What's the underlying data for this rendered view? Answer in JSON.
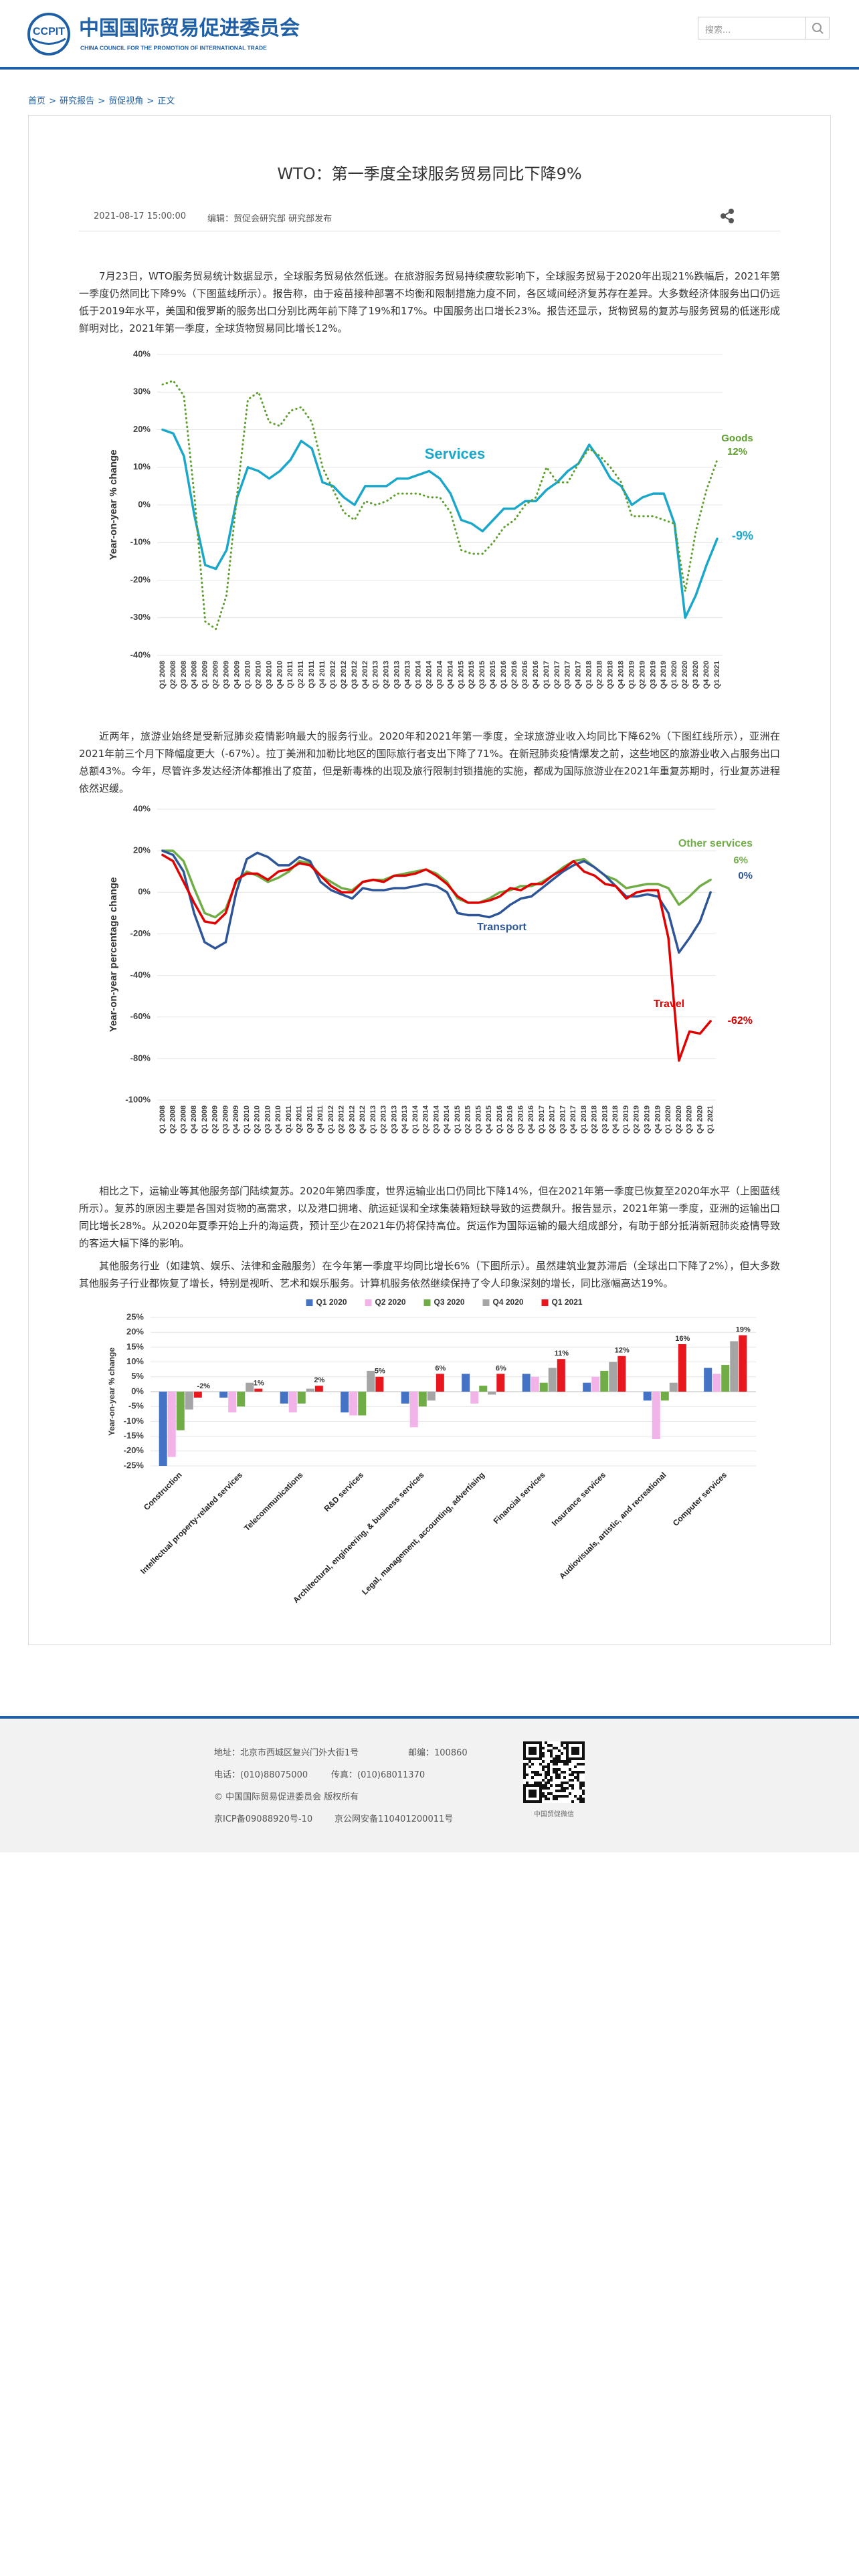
{
  "header": {
    "logo_mark": "CCPIT",
    "org_name": "中国国际贸易促进委员会",
    "org_name_en": "CHINA COUNCIL FOR THE PROMOTION OF INTERNATIONAL TRADE",
    "search_placeholder": "搜索..."
  },
  "breadcrumb": [
    "首页",
    "研究报告",
    "贸促视角",
    "正文"
  ],
  "breadcrumb_separator": ">",
  "article": {
    "title": "WTO：第一季度全球服务贸易同比下降9%",
    "date": "2021-08-17 15:00:00",
    "editor": "编辑：贸促会研究部 研究部发布",
    "paragraphs": [
      "7月23日，WTO服务贸易统计数据显示，全球服务贸易依然低迷。在旅游服务贸易持续疲软影响下，全球服务贸易于2020年出现21%跌幅后，2021年第一季度仍然同比下降9%（下图蓝线所示）。报告称，由于疫苗接种部署不均衡和限制措施力度不同，各区域间经济复苏存在差异。大多数经济体服务出口仍远低于2019年水平，美国和俄罗斯的服务出口分别比两年前下降了19%和17%。中国服务出口增长23%。报告还显示，货物贸易的复苏与服务贸易的低迷形成鲜明对比，2021年第一季度，全球货物贸易同比增长12%。",
      "近两年，旅游业始终是受新冠肺炎疫情影响最大的服务行业。2020年和2021年第一季度，全球旅游业收入均同比下降62%（下图红线所示），亚洲在2021年前三个月下降幅度更大（-67%）。拉丁美洲和加勒比地区的国际旅行者支出下降了71%。在新冠肺炎疫情爆发之前，这些地区的旅游业收入占服务出口总额43%。今年，尽管许多发达经济体都推出了疫苗，但是新毒株的出现及旅行限制封锁措施的实施，都成为国际旅游业在2021年重复苏期时，行业复苏进程依然迟缓。",
      "相比之下，运输业等其他服务部门陆续复苏。2020年第四季度，世界运输业出口仍同比下降14%，但在2021年第一季度已恢复至2020年水平（上图蓝线所示）。复苏的原因主要是各国对货物的高需求，以及港口拥堵、航运延误和全球集装箱短缺导致的运费飙升。报告显示，2021年第一季度，亚洲的运输出口同比增长28%。从2020年夏季开始上升的海运费，预计至少在2021年仍将保持高位。货运作为国际运输的最大组成部分，有助于部分抵消新冠肺炎疫情导致的客运大幅下降的影响。",
      "其他服务行业（如建筑、娱乐、法律和金融服务）在今年第一季度平均同比增长6%（下图所示）。虽然建筑业复苏滞后（全球出口下降了2%），但大多数其他服务子行业都恢复了增长，特别是视听、艺术和娱乐服务。计算机服务依然继续保持了令人印象深刻的增长，同比涨幅高达19%。"
    ]
  },
  "chart_data": [
    {
      "type": "line",
      "ylabel": "Year-on-year % change",
      "grid": true,
      "legend": "inline",
      "categories": [
        "Q1 2008",
        "Q2 2008",
        "Q3 2008",
        "Q4 2008",
        "Q1 2009",
        "Q2 2009",
        "Q3 2009",
        "Q4 2009",
        "Q1 2010",
        "Q2 2010",
        "Q3 2010",
        "Q4 2010",
        "Q1 2011",
        "Q2 2011",
        "Q3 2011",
        "Q4 2011",
        "Q1 2012",
        "Q2 2012",
        "Q3 2012",
        "Q4 2012",
        "Q1 2013",
        "Q2 2013",
        "Q3 2013",
        "Q4 2013",
        "Q1 2014",
        "Q2 2014",
        "Q3 2014",
        "Q4 2014",
        "Q1 2015",
        "Q2 2015",
        "Q3 2015",
        "Q4 2015",
        "Q1 2016",
        "Q2 2016",
        "Q3 2016",
        "Q4 2016",
        "Q1 2017",
        "Q2 2017",
        "Q3 2017",
        "Q4 2017",
        "Q1 2018",
        "Q2 2018",
        "Q3 2018",
        "Q4 2018",
        "Q1 2019",
        "Q2 2019",
        "Q3 2019",
        "Q4 2019",
        "Q1 2020",
        "Q2 2020",
        "Q3 2020",
        "Q4 2020",
        "Q1 2021"
      ],
      "series": [
        {
          "name": "Services",
          "color": "#1aa7c9",
          "dash": "solid",
          "values": [
            20,
            19,
            13,
            -3,
            -16,
            -17,
            -12,
            2,
            10,
            9,
            7,
            9,
            12,
            17,
            15,
            6,
            5,
            2,
            0,
            5,
            5,
            5,
            7,
            7,
            8,
            9,
            7,
            3,
            -4,
            -5,
            -7,
            -4,
            -1,
            -1,
            1,
            1,
            4,
            6,
            9,
            11,
            16,
            12,
            7,
            5,
            0,
            2,
            3,
            3,
            -5,
            -30,
            -24,
            -16,
            -9
          ]
        },
        {
          "name": "Goods",
          "color": "#5e9e2e",
          "dash": "dotted",
          "values": [
            32,
            33,
            29,
            2,
            -31,
            -33,
            -24,
            3,
            28,
            30,
            22,
            21,
            25,
            26,
            22,
            10,
            4,
            -2,
            -4,
            1,
            0,
            1,
            3,
            3,
            3,
            2,
            2,
            -2,
            -12,
            -13,
            -13,
            -10,
            -6,
            -4,
            0,
            2,
            10,
            6,
            6,
            11,
            15,
            13,
            10,
            6,
            -3,
            -3,
            -3,
            -4,
            -5,
            -23,
            -7,
            4,
            12
          ]
        }
      ],
      "annotations": [
        "12%",
        "-9%"
      ],
      "ylim": [
        -40,
        40
      ],
      "yticks": [
        {
          "value": -40,
          "label": "-40%"
        },
        {
          "value": -30,
          "label": "-30%"
        },
        {
          "value": -20,
          "label": "-20%"
        },
        {
          "value": -10,
          "label": "-10%"
        },
        {
          "value": 0,
          "label": "0%"
        },
        {
          "value": 10,
          "label": "10%"
        },
        {
          "value": 20,
          "label": "20%"
        },
        {
          "value": 30,
          "label": "30%"
        },
        {
          "value": 40,
          "label": "40%"
        }
      ]
    },
    {
      "type": "line",
      "ylabel": "Year-on-year percentage change",
      "grid": true,
      "legend": "inline",
      "categories": [
        "Q1 2008",
        "Q2 2008",
        "Q3 2008",
        "Q4 2008",
        "Q1 2009",
        "Q2 2009",
        "Q3 2009",
        "Q4 2009",
        "Q1 2010",
        "Q2 2010",
        "Q3 2010",
        "Q4 2010",
        "Q1 2011",
        "Q2 2011",
        "Q3 2011",
        "Q4 2011",
        "Q1 2012",
        "Q2 2012",
        "Q3 2012",
        "Q4 2012",
        "Q1 2013",
        "Q2 2013",
        "Q3 2013",
        "Q4 2013",
        "Q1 2014",
        "Q2 2014",
        "Q3 2014",
        "Q4 2014",
        "Q1 2015",
        "Q2 2015",
        "Q3 2015",
        "Q4 2015",
        "Q1 2016",
        "Q2 2016",
        "Q3 2016",
        "Q4 2016",
        "Q1 2017",
        "Q2 2017",
        "Q3 2017",
        "Q4 2017",
        "Q1 2018",
        "Q2 2018",
        "Q3 2018",
        "Q4 2018",
        "Q1 2019",
        "Q2 2019",
        "Q3 2019",
        "Q4 2019",
        "Q1 2020",
        "Q2 2020",
        "Q3 2020",
        "Q4 2020",
        "Q1 2021"
      ],
      "series": [
        {
          "name": "Other services",
          "color": "#70ad47",
          "dash": "solid",
          "values": [
            20,
            20,
            15,
            2,
            -10,
            -12,
            -8,
            5,
            10,
            8,
            5,
            7,
            10,
            15,
            14,
            8,
            5,
            2,
            1,
            5,
            6,
            6,
            8,
            9,
            10,
            11,
            9,
            5,
            -3,
            -5,
            -5,
            -3,
            0,
            1,
            3,
            3,
            5,
            8,
            12,
            15,
            16,
            12,
            8,
            6,
            2,
            3,
            4,
            4,
            2,
            -6,
            -2,
            3,
            6
          ]
        },
        {
          "name": "Transport",
          "color": "#2e5597",
          "dash": "solid",
          "values": [
            20,
            18,
            10,
            -10,
            -24,
            -27,
            -24,
            0,
            16,
            19,
            17,
            13,
            13,
            17,
            15,
            5,
            1,
            -1,
            -3,
            2,
            1,
            1,
            2,
            2,
            3,
            4,
            3,
            0,
            -10,
            -11,
            -11,
            -12,
            -10,
            -6,
            -3,
            -2,
            2,
            6,
            10,
            13,
            15,
            12,
            8,
            3,
            -2,
            -2,
            -1,
            -2,
            -10,
            -29,
            -22,
            -14,
            0
          ]
        },
        {
          "name": "Travel",
          "color": "#e00000",
          "dash": "solid",
          "values": [
            18,
            15,
            5,
            -5,
            -14,
            -15,
            -10,
            6,
            9,
            9,
            6,
            10,
            11,
            14,
            13,
            8,
            3,
            0,
            0,
            5,
            6,
            5,
            8,
            8,
            9,
            11,
            8,
            4,
            -2,
            -5,
            -5,
            -4,
            -2,
            2,
            1,
            4,
            4,
            8,
            11,
            15,
            10,
            8,
            4,
            3,
            -3,
            0,
            1,
            1,
            -22,
            -81,
            -67,
            -68,
            -62
          ]
        }
      ],
      "annotations": [
        "6%",
        "0%",
        "-62%"
      ],
      "ylim": [
        -100,
        40
      ],
      "yticks": [
        {
          "value": -100,
          "label": "-100%"
        },
        {
          "value": -80,
          "label": "-80%"
        },
        {
          "value": -60,
          "label": "-60%"
        },
        {
          "value": -40,
          "label": "-40%"
        },
        {
          "value": -20,
          "label": "-20%"
        },
        {
          "value": 0,
          "label": "0%"
        },
        {
          "value": 20,
          "label": "20%"
        },
        {
          "value": 40,
          "label": "40%"
        }
      ]
    },
    {
      "type": "bar",
      "ylabel": "Year-on-year % change",
      "grid": true,
      "legend": "top",
      "categories": [
        "Construction",
        "Intellectual property-related services",
        "Telecommunications",
        "R&D services",
        "Architectural, engineering, & business services",
        "Legal, management, accounting, advertising",
        "Financial services",
        "Insurance services",
        "Audiovisuals, artistic, and recreational",
        "Computer services"
      ],
      "series": [
        {
          "name": "Q1 2020",
          "color": "#4472c4",
          "values": [
            -25,
            -2,
            -4,
            -7,
            -4,
            6,
            6,
            3,
            -3,
            8
          ]
        },
        {
          "name": "Q2 2020",
          "color": "#f2b3e8",
          "values": [
            -22,
            -7,
            -7,
            -8,
            -12,
            -4,
            5,
            5,
            -16,
            6
          ]
        },
        {
          "name": "Q3 2020",
          "color": "#70ad47",
          "values": [
            -13,
            -5,
            -4,
            -8,
            -5,
            2,
            3,
            7,
            -3,
            9
          ]
        },
        {
          "name": "Q4 2020",
          "color": "#a5a5a5",
          "values": [
            -6,
            3,
            1,
            7,
            -3,
            -1,
            8,
            10,
            3,
            17
          ]
        },
        {
          "name": "Q1 2021",
          "color": "#e8161d",
          "values": [
            -2,
            1,
            2,
            5,
            6,
            6,
            11,
            12,
            16,
            19
          ],
          "value_labels": [
            "-2%",
            "1%",
            "2%",
            "5%",
            "6%",
            "6%",
            "11%",
            "12%",
            "16%",
            "19%"
          ]
        }
      ],
      "ylim": [
        -25,
        25
      ],
      "yticks": [
        {
          "value": -25,
          "label": "-25%"
        },
        {
          "value": -20,
          "label": "-20%"
        },
        {
          "value": -15,
          "label": "-15%"
        },
        {
          "value": -10,
          "label": "-10%"
        },
        {
          "value": -5,
          "label": "-5%"
        },
        {
          "value": 0,
          "label": "0%"
        },
        {
          "value": 5,
          "label": "5%"
        },
        {
          "value": 10,
          "label": "10%"
        },
        {
          "value": 15,
          "label": "15%"
        },
        {
          "value": 20,
          "label": "20%"
        },
        {
          "value": 25,
          "label": "25%"
        }
      ]
    }
  ],
  "footer": {
    "address": "地址：北京市西城区复兴门外大街1号",
    "postcode": "邮编：100860",
    "phone": "电话：(010)88075000",
    "fax": "传真：(010)68011370",
    "copyright": "© 中国国际贸易促进委员会 版权所有",
    "icp": "京ICP备09088920号-10",
    "police": "京公网安备110401200011号",
    "qr_caption": "中国贸促微信"
  }
}
